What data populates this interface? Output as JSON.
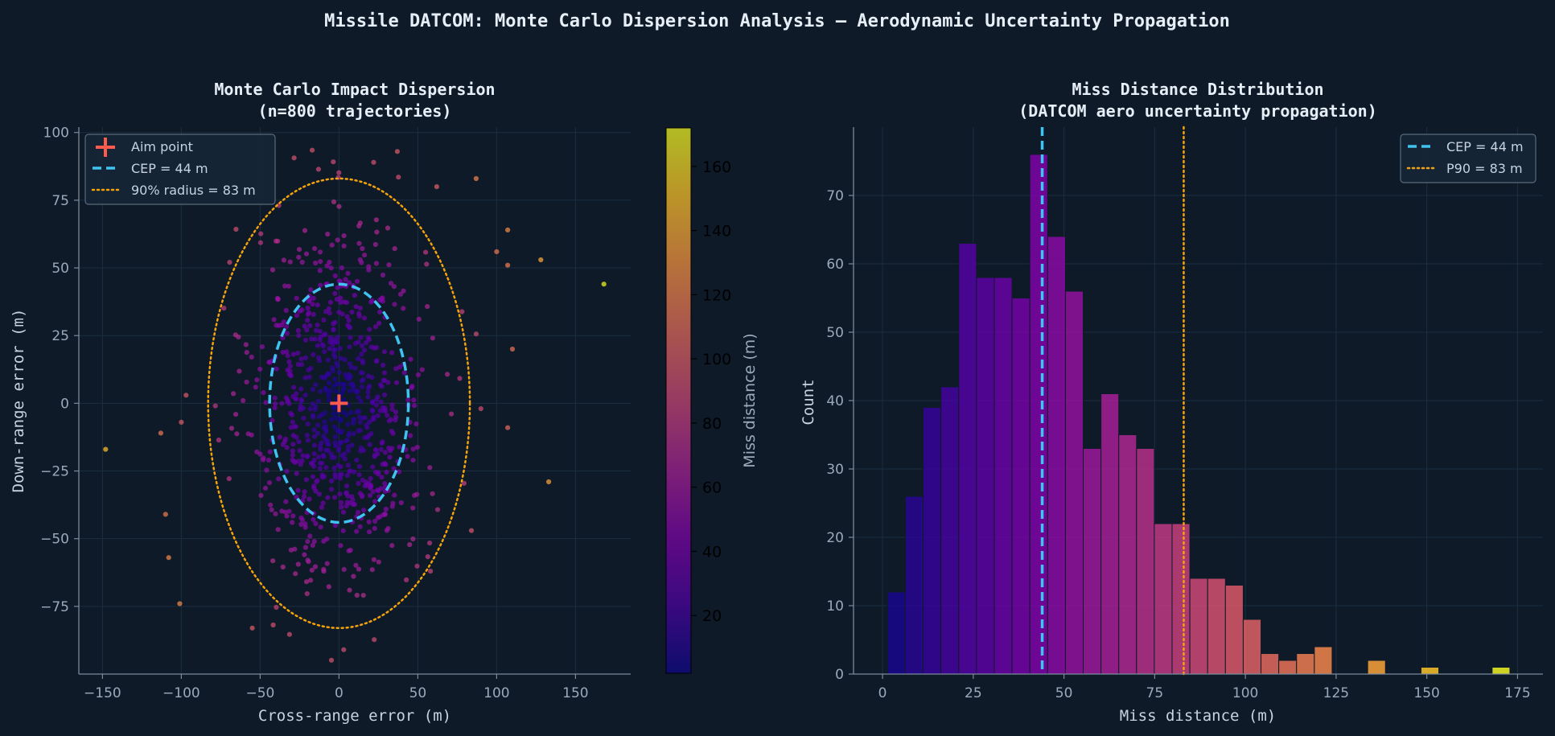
{
  "figure": {
    "suptitle": "Missile DATCOM: Monte Carlo Dispersion Analysis — Aerodynamic Uncertainty Propagation",
    "background": "#0e1a28",
    "text_color": "#e6eef7",
    "muted_color": "#9aaabb",
    "grid_color": "#1b2e40"
  },
  "colors": {
    "aim": "#ff5a4e",
    "cep": "#3fc3f0",
    "p90": "#f5a30a"
  },
  "chart_data": [
    {
      "type": "scatter",
      "title_line1": "Monte Carlo Impact Dispersion",
      "title_line2": "(n=800 trajectories)",
      "xlabel": "Cross-range error (m)",
      "ylabel": "Down-range error (m)",
      "xlim": [
        -165,
        185
      ],
      "ylim": [
        -100,
        102
      ],
      "xticks": [
        -150,
        -100,
        -50,
        0,
        50,
        100,
        150
      ],
      "yticks": [
        -75,
        -50,
        -25,
        0,
        25,
        50,
        75,
        100
      ],
      "xtick_labels": [
        "−150",
        "−100",
        "−50",
        "0",
        "50",
        "100",
        "150"
      ],
      "ytick_labels": [
        "−75",
        "−50",
        "−25",
        "0",
        "25",
        "50",
        "75",
        "100"
      ],
      "grid": true,
      "legend_position": "top-left",
      "legend": [
        {
          "label": "Aim point",
          "style": "marker-plus"
        },
        {
          "label": "CEP = 44 m",
          "style": "dashed"
        },
        {
          "label": "90% radius = 83 m",
          "style": "dotted"
        }
      ],
      "n_points": 800,
      "cep_ellipse": {
        "semi_x": 44,
        "semi_y": 44
      },
      "p90_ellipse": {
        "semi_x": 83,
        "semi_y": 83
      },
      "aim_point": [
        0,
        0
      ],
      "spread_sigma": {
        "x": 27,
        "y": 33
      },
      "outliers": [
        {
          "x": 168,
          "y": 44,
          "miss": 172
        },
        {
          "x": -148,
          "y": -17,
          "miss": 150
        },
        {
          "x": 133,
          "y": -29,
          "miss": 137
        },
        {
          "x": 128,
          "y": 53,
          "miss": 138
        },
        {
          "x": 107,
          "y": 64,
          "miss": 125
        },
        {
          "x": 107,
          "y": 51,
          "miss": 118
        },
        {
          "x": 110,
          "y": 20,
          "miss": 112
        },
        {
          "x": 107,
          "y": -9,
          "miss": 107
        },
        {
          "x": -113,
          "y": -11,
          "miss": 114
        },
        {
          "x": -110,
          "y": -41,
          "miss": 117
        },
        {
          "x": -108,
          "y": -57,
          "miss": 122
        },
        {
          "x": -101,
          "y": -74,
          "miss": 125
        },
        {
          "x": 87,
          "y": 83,
          "miss": 120
        },
        {
          "x": 62,
          "y": 80,
          "miss": 101
        },
        {
          "x": -100,
          "y": -7,
          "miss": 100
        },
        {
          "x": 100,
          "y": 56,
          "miss": 115
        },
        {
          "x": 58,
          "y": -62,
          "miss": 85
        },
        {
          "x": 3,
          "y": -91,
          "miss": 91
        },
        {
          "x": -55,
          "y": -83,
          "miss": 99
        },
        {
          "x": -97,
          "y": 3,
          "miss": 97
        },
        {
          "x": 22,
          "y": 89,
          "miss": 92
        },
        {
          "x": 37,
          "y": 93,
          "miss": 100
        },
        {
          "x": 90,
          "y": -2,
          "miss": 90
        },
        {
          "x": 84,
          "y": -47,
          "miss": 96
        }
      ],
      "colorbar": {
        "label": "Miss distance (m)",
        "min": 2,
        "max": 172,
        "ticks": [
          20,
          40,
          60,
          80,
          100,
          120,
          140,
          160
        ],
        "tick_labels": [
          "20",
          "40",
          "60",
          "80",
          "100",
          "120",
          "140",
          "160"
        ],
        "colormap": "plasma"
      }
    },
    {
      "type": "bar",
      "subtype": "histogram",
      "title_line1": "Miss Distance Distribution",
      "title_line2": "(DATCOM aero uncertainty propagation)",
      "xlabel": "Miss distance (m)",
      "ylabel": "Count",
      "xlim": [
        -8,
        182
      ],
      "ylim": [
        0,
        80
      ],
      "xticks": [
        0,
        25,
        50,
        75,
        100,
        125,
        150,
        175
      ],
      "yticks": [
        0,
        10,
        20,
        30,
        40,
        50,
        60,
        70
      ],
      "xtick_labels": [
        "0",
        "25",
        "50",
        "75",
        "100",
        "125",
        "150",
        "175"
      ],
      "ytick_labels": [
        "0",
        "10",
        "20",
        "30",
        "40",
        "50",
        "60",
        "70"
      ],
      "grid": true,
      "legend_position": "top-right",
      "legend": [
        {
          "label": "CEP = 44 m",
          "style": "dashed"
        },
        {
          "label": "P90 = 83 m",
          "style": "dotted"
        }
      ],
      "bin_start": 1.4,
      "bin_width": 4.9,
      "counts": [
        12,
        26,
        39,
        42,
        63,
        58,
        58,
        55,
        76,
        64,
        56,
        33,
        41,
        35,
        33,
        22,
        22,
        14,
        14,
        13,
        8,
        3,
        2,
        3,
        4,
        0,
        0,
        2,
        0,
        0,
        1,
        0,
        0,
        0,
        1
      ],
      "cep_line": 44,
      "p90_line": 83
    }
  ]
}
